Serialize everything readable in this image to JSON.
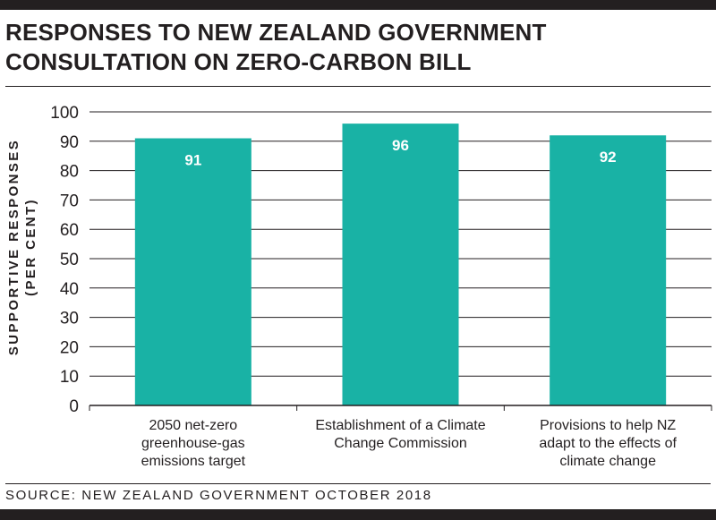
{
  "title": "RESPONSES TO NEW ZEALAND GOVERNMENT CONSULTATION ON ZERO-CARBON BILL",
  "source": "SOURCE: NEW ZEALAND GOVERNMENT OCTOBER 2018",
  "colors": {
    "bar": "#19b2a5",
    "ink": "#231f20"
  },
  "chart_data": {
    "type": "bar",
    "categories": [
      "2050 net-zero greenhouse-gas emissions target",
      "Establishment of a Climate Change Commission",
      "Provisions to help NZ adapt to the effects of climate change"
    ],
    "category_lines": [
      [
        "2050 net-zero",
        "greenhouse-gas",
        "emissions target"
      ],
      [
        "Establishment of a Climate",
        "Change Commission"
      ],
      [
        "Provisions to help NZ",
        "adapt to the effects of",
        "climate change"
      ]
    ],
    "values": [
      91,
      96,
      92
    ],
    "data_labels": [
      "91",
      "96",
      "92"
    ],
    "ylabel_lines": [
      "SUPPORTIVE RESPONSES",
      "(PER CENT)"
    ],
    "xlabel": "",
    "ylim": [
      0,
      100
    ],
    "yticks": [
      0,
      10,
      20,
      30,
      40,
      50,
      60,
      70,
      80,
      90,
      100
    ],
    "grid": true,
    "legend": "none"
  }
}
